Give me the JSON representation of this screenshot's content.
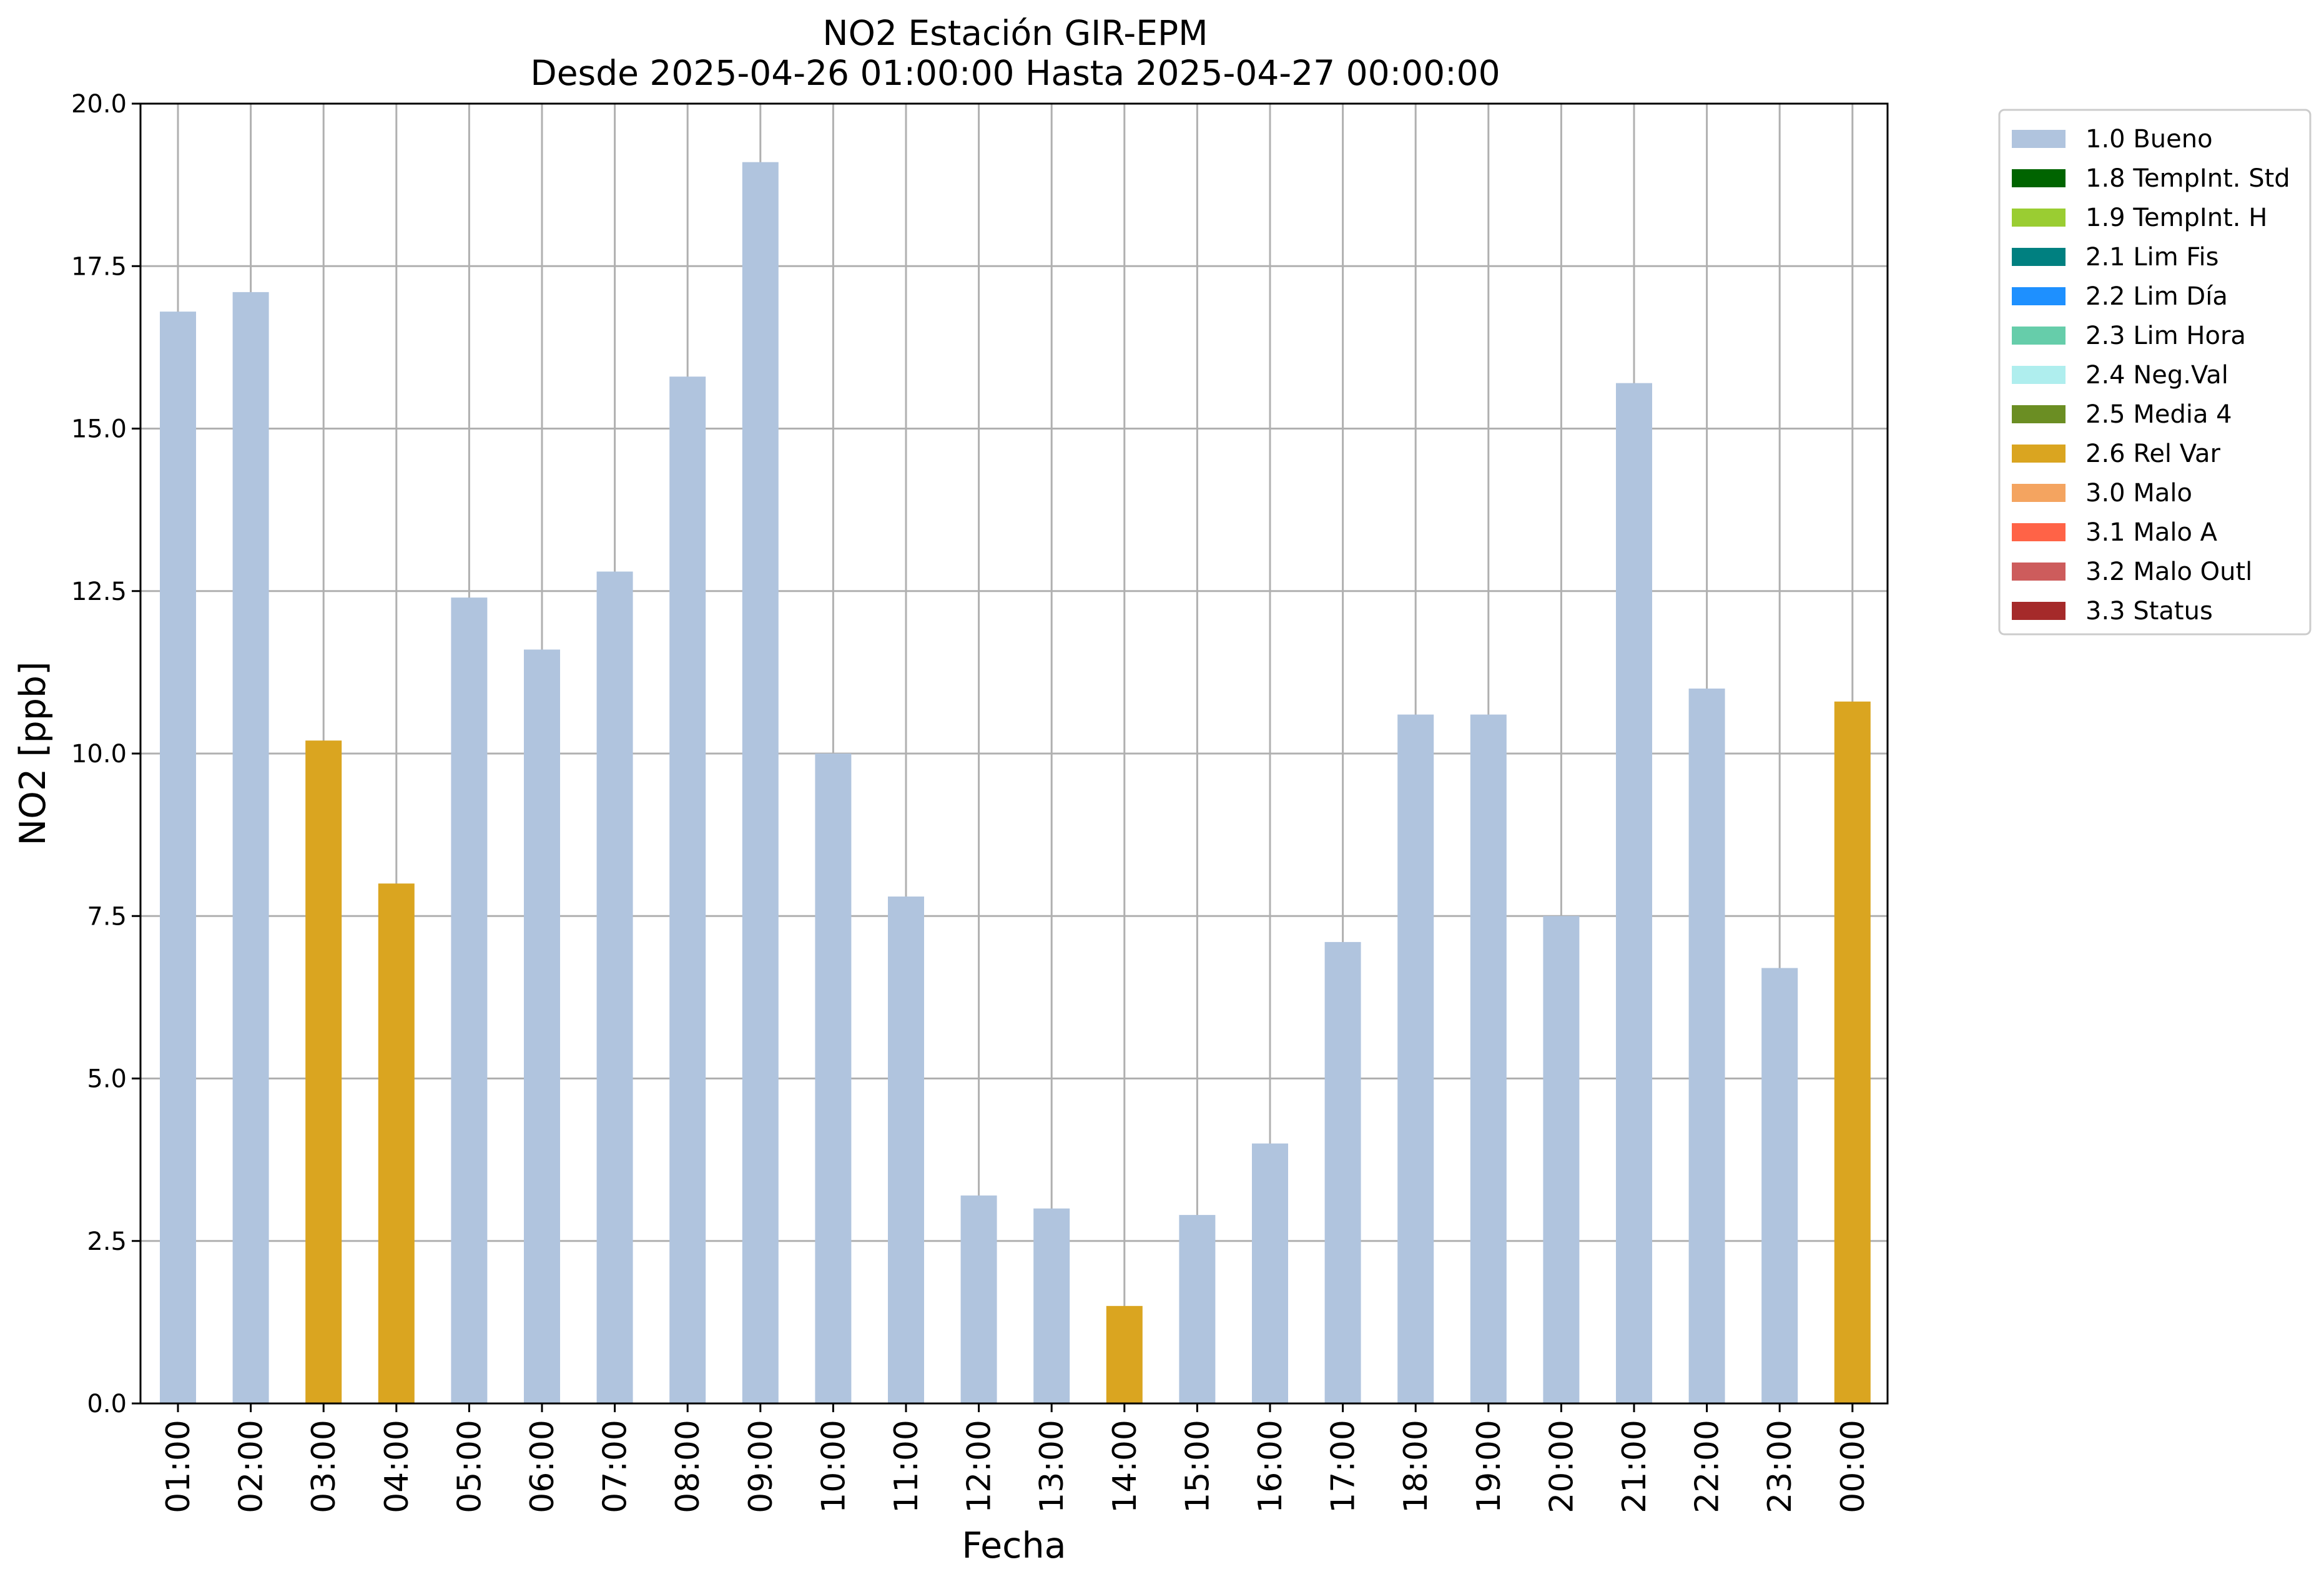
{
  "chart_data": {
    "type": "bar",
    "title": "NO2 Estación GIR-EPM",
    "subtitle": "Desde 2025-04-26 01:00:00 Hasta 2025-04-27 00:00:00",
    "xlabel": "Fecha",
    "ylabel": "NO2 [ppb]",
    "ylim": [
      0,
      20
    ],
    "yticks": [
      "0.0",
      "2.5",
      "5.0",
      "7.5",
      "10.0",
      "12.5",
      "15.0",
      "17.5",
      "20.0"
    ],
    "grid": true,
    "legend_position": "outside-top-right",
    "categories": [
      "01:00",
      "02:00",
      "03:00",
      "04:00",
      "05:00",
      "06:00",
      "07:00",
      "08:00",
      "09:00",
      "10:00",
      "11:00",
      "12:00",
      "13:00",
      "14:00",
      "15:00",
      "16:00",
      "17:00",
      "18:00",
      "19:00",
      "20:00",
      "21:00",
      "22:00",
      "23:00",
      "00:00"
    ],
    "values": [
      16.8,
      17.1,
      10.2,
      8.0,
      12.4,
      11.6,
      12.8,
      15.8,
      19.1,
      10.0,
      7.8,
      3.2,
      3.0,
      1.5,
      2.9,
      4.0,
      7.1,
      10.6,
      10.6,
      7.5,
      15.7,
      11.0,
      6.7,
      10.8
    ],
    "flags": [
      "1.0 Bueno",
      "1.0 Bueno",
      "2.6 Rel Var",
      "2.6 Rel Var",
      "1.0 Bueno",
      "1.0 Bueno",
      "1.0 Bueno",
      "1.0 Bueno",
      "1.0 Bueno",
      "1.0 Bueno",
      "1.0 Bueno",
      "1.0 Bueno",
      "1.0 Bueno",
      "2.6 Rel Var",
      "1.0 Bueno",
      "1.0 Bueno",
      "1.0 Bueno",
      "1.0 Bueno",
      "1.0 Bueno",
      "1.0 Bueno",
      "1.0 Bueno",
      "1.0 Bueno",
      "1.0 Bueno",
      "2.6 Rel Var"
    ],
    "legend": [
      {
        "label": "1.0 Bueno",
        "color": "#b0c4de"
      },
      {
        "label": "1.8 TempInt. Std",
        "color": "#006400"
      },
      {
        "label": "1.9 TempInt. H",
        "color": "#9acd32"
      },
      {
        "label": "2.1 Lim Fis",
        "color": "#008080"
      },
      {
        "label": "2.2 Lim Día",
        "color": "#1e90ff"
      },
      {
        "label": "2.3 Lim Hora",
        "color": "#66cdaa"
      },
      {
        "label": "2.4 Neg.Val",
        "color": "#afeeee"
      },
      {
        "label": "2.5 Media 4",
        "color": "#6b8e23"
      },
      {
        "label": "2.6 Rel Var",
        "color": "#daa520"
      },
      {
        "label": "3.0 Malo",
        "color": "#f4a460"
      },
      {
        "label": "3.1 Malo A",
        "color": "#ff6347"
      },
      {
        "label": "3.2 Malo Outl",
        "color": "#cd5c5c"
      },
      {
        "label": "3.3 Status",
        "color": "#a52a2a"
      }
    ]
  }
}
